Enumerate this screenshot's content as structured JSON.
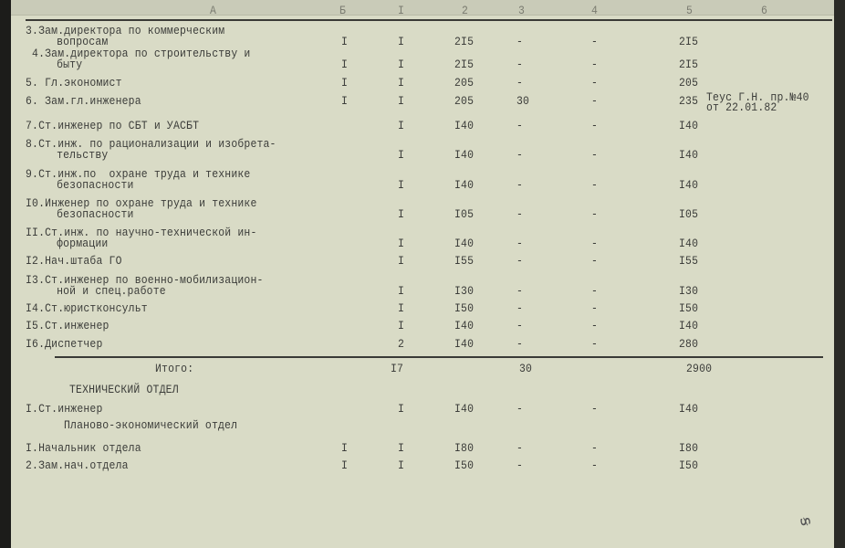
{
  "header": [
    "А",
    "Б",
    "I",
    "2",
    "3",
    "4",
    "5",
    "6"
  ],
  "rows": [
    {
      "a": [
        "3.Зам.директора по коммерческим",
        "  вопросам"
      ],
      "b": "I",
      "c1": "I",
      "c2": "2I5",
      "c3": "-",
      "c4": "-",
      "c5": "2I5"
    },
    {
      "a": [
        " 4.Зам.директора по строительству и",
        "  быту"
      ],
      "b": "I",
      "c1": "I",
      "c2": "2I5",
      "c3": "-",
      "c4": "-",
      "c5": "2I5"
    },
    {
      "a": [
        "5. Гл.экономист"
      ],
      "b": "I",
      "c1": "I",
      "c2": "205",
      "c3": "-",
      "c4": "-",
      "c5": "205"
    },
    {
      "a": [
        "6. Зам.гл.инженера"
      ],
      "b": "I",
      "c1": "I",
      "c2": "205",
      "c3": "30",
      "c4": "-",
      "c5": "235",
      "c6": [
        "Теус Г.Н. пр.№40",
        "от 22.01.82"
      ]
    },
    {
      "a": [
        "7.Ст.инженер по СБТ и УАСБТ"
      ],
      "b": "",
      "c1": "I",
      "c2": "I40",
      "c3": "-",
      "c4": "-",
      "c5": "I40"
    },
    {
      "a": [
        "8.Ст.инж. по рационализации и изобрета-",
        "  тельству"
      ],
      "b": "",
      "c1": "I",
      "c2": "I40",
      "c3": "-",
      "c4": "-",
      "c5": "I40"
    },
    {
      "a": [
        "9.Ст.инж.по  охране труда и технике",
        "  безопасности"
      ],
      "b": "",
      "c1": "I",
      "c2": "I40",
      "c3": "-",
      "c4": "-",
      "c5": "I40"
    },
    {
      "a": [
        "I0.Инженер по охране труда и технике",
        "  безопасности"
      ],
      "b": "",
      "c1": "I",
      "c2": "I05",
      "c3": "-",
      "c4": "-",
      "c5": "I05"
    },
    {
      "a": [
        "II.Ст.инж. по научно-технической ин-",
        "  формации"
      ],
      "b": "",
      "c1": "I",
      "c2": "I40",
      "c3": "-",
      "c4": "-",
      "c5": "I40"
    },
    {
      "a": [
        "I2.Нач.штаба ГО"
      ],
      "b": "",
      "c1": "I",
      "c2": "I55",
      "c3": "-",
      "c4": "-",
      "c5": "I55"
    },
    {
      "a": [
        "I3.Ст.инженер по военно-мобилизацион-",
        "  ной и спец.работе"
      ],
      "b": "",
      "c1": "I",
      "c2": "I30",
      "c3": "-",
      "c4": "-",
      "c5": "I30"
    },
    {
      "a": [
        "I4.Ст.юристконсульт"
      ],
      "b": "",
      "c1": "I",
      "c2": "I50",
      "c3": "-",
      "c4": "-",
      "c5": "I50"
    },
    {
      "a": [
        "I5.Ст.инженер"
      ],
      "b": "",
      "c1": "I",
      "c2": "I40",
      "c3": "-",
      "c4": "-",
      "c5": "I40"
    },
    {
      "a": [
        "I6.Диспетчер"
      ],
      "b": "",
      "c1": "2",
      "c2": "I40",
      "c3": "-",
      "c4": "-",
      "c5": "280"
    }
  ],
  "total": {
    "label": "Итого:",
    "c1": "I7",
    "c3": "30",
    "c5": "2900"
  },
  "tech_dept": {
    "title": "ТЕХНИЧЕСКИЙ ОТДЕЛ",
    "rows": [
      {
        "a": [
          "I.Ст.инженер"
        ],
        "b": "",
        "c1": "I",
        "c2": "I40",
        "c3": "-",
        "c4": "-",
        "c5": "I40"
      }
    ]
  },
  "plan_dept": {
    "title": "Планово-экономический отдел",
    "rows": [
      {
        "a": [
          "I.Начальник отдела"
        ],
        "b": "I",
        "c1": "I",
        "c2": "I80",
        "c3": "-",
        "c4": "-",
        "c5": "I80"
      },
      {
        "a": [
          "2.Зам.нач.отдела"
        ],
        "b": "I",
        "c1": "I",
        "c2": "I50",
        "c3": "-",
        "c4": "-",
        "c5": "I50"
      }
    ]
  },
  "page_number": "23"
}
